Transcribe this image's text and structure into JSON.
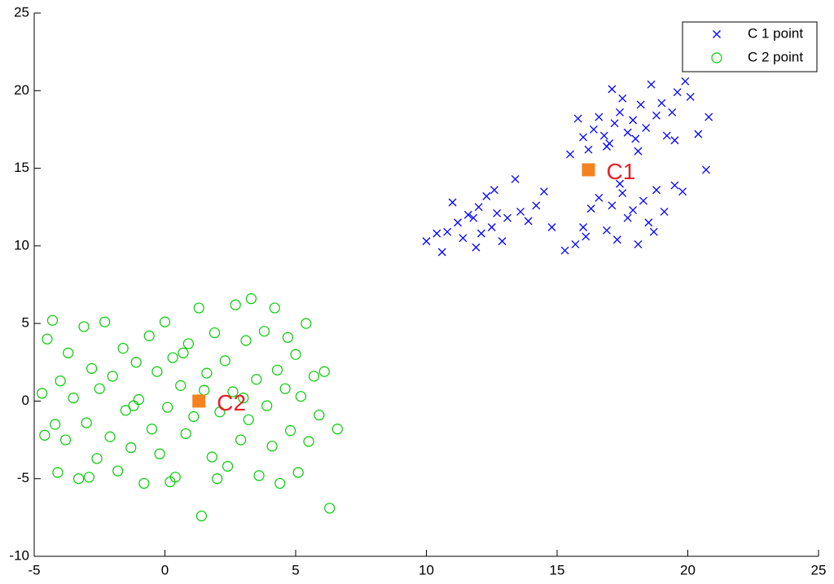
{
  "chart_data": {
    "type": "scatter",
    "xlim": [
      -5,
      25
    ],
    "ylim": [
      -10,
      25
    ],
    "xticks": [
      -5,
      0,
      5,
      10,
      15,
      20,
      25
    ],
    "yticks": [
      -10,
      -5,
      0,
      5,
      10,
      15,
      20,
      25
    ],
    "legend": "upper right",
    "series": [
      {
        "name": "C 1 point",
        "color": "#0000ff",
        "marker": "x",
        "x": [
          10,
          10.6,
          10.8,
          11,
          11.2,
          11.4,
          11.6,
          11.8,
          12,
          12.1,
          12.3,
          12.5,
          12.7,
          12.9,
          13.1,
          13.4,
          13.6,
          13.9,
          14.2,
          14.5,
          14.8,
          10.4,
          11.9,
          12.6,
          15.5,
          15.8,
          16,
          16.2,
          16.4,
          16.6,
          16.8,
          17,
          17.2,
          17.4,
          17.5,
          17.7,
          17.9,
          18,
          18.2,
          18.4,
          18.6,
          18.8,
          19,
          19.2,
          19.4,
          19.6,
          19.9,
          20.1,
          20.4,
          20.8,
          17.1,
          18.1,
          16.9,
          19.5,
          15.3,
          15.7,
          16,
          16.3,
          16.6,
          16.9,
          17.1,
          17.3,
          17.5,
          17.7,
          17.9,
          18.1,
          18.3,
          18.5,
          18.8,
          19.1,
          19.5,
          19.8,
          20.7,
          16.1,
          18.7,
          17.4
        ],
        "y": [
          10.3,
          9.6,
          10.9,
          12.8,
          11.5,
          10.5,
          12,
          11.8,
          12.5,
          10.8,
          13.2,
          11.2,
          12.1,
          10.3,
          11.8,
          14.3,
          12.2,
          11.6,
          12.6,
          13.5,
          11.2,
          10.8,
          9.9,
          13.6,
          15.9,
          18.2,
          17,
          16.2,
          17.5,
          18.3,
          17.1,
          16.6,
          17.9,
          18.6,
          19.5,
          17.3,
          18.1,
          16.9,
          19.1,
          17.6,
          20.4,
          18.4,
          19.2,
          17.1,
          18.6,
          19.9,
          20.6,
          19.6,
          17.2,
          18.3,
          20.1,
          16.1,
          16.4,
          16.8,
          9.7,
          10.1,
          11.2,
          12.4,
          13.1,
          11,
          12.6,
          10.4,
          13.4,
          11.8,
          12.3,
          10.1,
          12.9,
          11.5,
          13.6,
          12.2,
          13.9,
          13.5,
          14.9,
          10.6,
          10.9,
          14
        ]
      },
      {
        "name": "C 2 point",
        "color": "#00cc00",
        "marker": "o",
        "x": [
          -4.7,
          -4.6,
          -4.5,
          -4.3,
          -4.1,
          -4,
          -3.8,
          -3.7,
          -3.5,
          -3.3,
          -3.1,
          -3,
          -2.8,
          -2.6,
          -2.5,
          -2.3,
          -2.1,
          -2,
          -1.8,
          -1.6,
          -1.5,
          -1.3,
          -1.1,
          -1,
          -0.8,
          -0.6,
          -0.5,
          -0.3,
          -0.2,
          0,
          0.1,
          0.3,
          0.4,
          0.6,
          0.8,
          0.9,
          1.1,
          1.3,
          1.4,
          1.6,
          1.8,
          1.9,
          2.1,
          2.3,
          2.4,
          2.6,
          2.7,
          2.9,
          3.1,
          3.2,
          3.3,
          3.5,
          3.6,
          3.8,
          3.9,
          4.1,
          4.2,
          4.3,
          4.4,
          4.6,
          4.7,
          4.8,
          5,
          5.1,
          5.2,
          5.4,
          5.5,
          5.7,
          5.9,
          6.1,
          6.3,
          6.6,
          -4.2,
          -2.9,
          0.2,
          2,
          1.5,
          -1.2,
          3,
          0.7
        ],
        "y": [
          0.5,
          -2.2,
          4,
          5.2,
          -4.6,
          1.3,
          -2.5,
          3.1,
          0.2,
          -5,
          4.8,
          -1.4,
          2.1,
          -3.7,
          0.8,
          5.1,
          -2.3,
          1.6,
          -4.5,
          3.4,
          -0.6,
          -3,
          2.5,
          0.1,
          -5.3,
          4.2,
          -1.8,
          1.9,
          -3.4,
          5.1,
          -0.4,
          2.8,
          -4.9,
          1,
          -2.1,
          3.7,
          -1,
          6,
          -7.4,
          1.8,
          -3.6,
          4.4,
          -0.7,
          2.6,
          -4.2,
          0.6,
          6.2,
          -2.5,
          3.9,
          -1.2,
          6.6,
          1.4,
          -4.8,
          4.5,
          -0.3,
          -2.9,
          6,
          2,
          -5.3,
          0.8,
          4.1,
          -1.9,
          3,
          -4.6,
          0.3,
          5,
          -2.6,
          1.6,
          -0.9,
          1.9,
          -6.9,
          -1.8,
          -1.5,
          -4.9,
          -5.2,
          -5,
          0.7,
          -0.3,
          0.2,
          3.1
        ]
      }
    ],
    "centroids": {
      "color": "#f5821f",
      "label_color": "#e8202a",
      "points": [
        {
          "label": "C1",
          "x": 16.2,
          "y": 14.9
        },
        {
          "label": "C2",
          "x": 1.3,
          "y": 0
        }
      ]
    }
  }
}
